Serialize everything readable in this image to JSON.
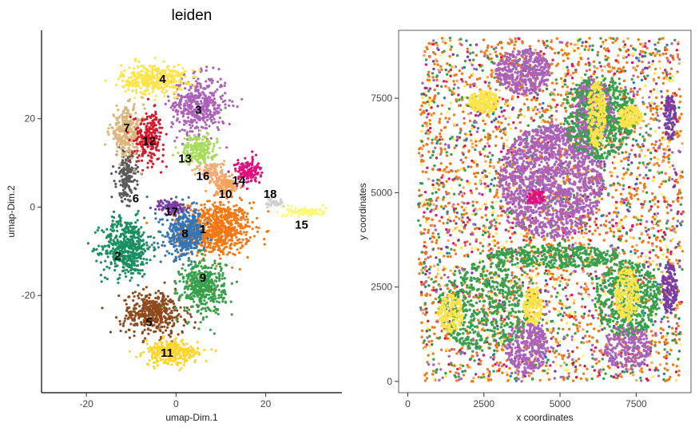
{
  "palette": {
    "1": "#f57712",
    "2": "#1b8f5f",
    "3": "#ab62b8",
    "4": "#fde44a",
    "5": "#8e4a1c",
    "6": "#5a5a5a",
    "7": "#dcb57a",
    "8": "#3575b5",
    "9": "#37a04a",
    "10": "#f8a25a",
    "11": "#fdd52b",
    "12": "#d6182a",
    "13": "#a7dc5a",
    "14": "#e0117e",
    "15": "#fef87a",
    "16": "#f7a978",
    "17": "#7a3ca0",
    "18": "#d0d0d0",
    "19": "#f4c23a"
  },
  "chart_data": [
    {
      "type": "scatter",
      "title": "leiden",
      "xlabel": "umap-Dim.1",
      "ylabel": "umap-Dim.2",
      "xlim": [
        -30,
        37
      ],
      "ylim": [
        -42,
        40
      ],
      "xticks": [
        -20,
        0,
        20
      ],
      "yticks": [
        -20,
        0,
        20
      ],
      "grid": false,
      "legend": "none",
      "clusters": [
        {
          "id": "1",
          "cx": 9,
          "cy": -5,
          "sx": 7.0,
          "sy": 5.5,
          "n": 700
        },
        {
          "id": "2",
          "cx": -11,
          "cy": -9,
          "sx": 5.0,
          "sy": 6.0,
          "n": 500
        },
        {
          "id": "3",
          "cx": 5,
          "cy": 23,
          "sx": 5.5,
          "sy": 6.0,
          "n": 450
        },
        {
          "id": "4",
          "cx": -5,
          "cy": 29,
          "sx": 6.5,
          "sy": 3.0,
          "n": 380
        },
        {
          "id": "5",
          "cx": -5,
          "cy": -24,
          "sx": 6.5,
          "sy": 4.5,
          "n": 420
        },
        {
          "id": "6",
          "cx": -11,
          "cy": 7,
          "sx": 2.0,
          "sy": 5.0,
          "n": 180
        },
        {
          "id": "7",
          "cx": -11,
          "cy": 17,
          "sx": 3.5,
          "sy": 5.0,
          "n": 280
        },
        {
          "id": "8",
          "cx": 2,
          "cy": -6,
          "sx": 4.0,
          "sy": 5.0,
          "n": 400
        },
        {
          "id": "9",
          "cx": 6,
          "cy": -18,
          "sx": 4.5,
          "sy": 5.5,
          "n": 420
        },
        {
          "id": "10",
          "cx": 11,
          "cy": 5,
          "sx": 3.0,
          "sy": 2.0,
          "n": 120
        },
        {
          "id": "11",
          "cx": -1,
          "cy": -33,
          "sx": 5.5,
          "sy": 2.5,
          "n": 300
        },
        {
          "id": "12",
          "cx": -6,
          "cy": 16,
          "sx": 3.0,
          "sy": 5.0,
          "n": 220
        },
        {
          "id": "13",
          "cx": 5,
          "cy": 13,
          "sx": 3.5,
          "sy": 3.0,
          "n": 220
        },
        {
          "id": "14",
          "cx": 16,
          "cy": 8,
          "sx": 2.5,
          "sy": 2.5,
          "n": 150
        },
        {
          "id": "15",
          "cx": 29,
          "cy": -1,
          "sx": 4.0,
          "sy": 1.0,
          "n": 100
        },
        {
          "id": "16",
          "cx": 8,
          "cy": 8,
          "sx": 2.5,
          "sy": 2.0,
          "n": 100
        },
        {
          "id": "17",
          "cx": -1,
          "cy": 0,
          "sx": 3.0,
          "sy": 1.5,
          "n": 90
        },
        {
          "id": "18",
          "cx": 22,
          "cy": 1,
          "sx": 2.0,
          "sy": 1.0,
          "n": 40
        }
      ],
      "labels": [
        {
          "text": "4",
          "x": -3,
          "y": 29
        },
        {
          "text": "3",
          "x": 5,
          "y": 22
        },
        {
          "text": "7",
          "x": -11,
          "y": 18
        },
        {
          "text": "12",
          "x": -6,
          "y": 15
        },
        {
          "text": "13",
          "x": 2,
          "y": 11
        },
        {
          "text": "16",
          "x": 6,
          "y": 7
        },
        {
          "text": "14",
          "x": 14,
          "y": 6
        },
        {
          "text": "10",
          "x": 11,
          "y": 3
        },
        {
          "text": "18",
          "x": 21,
          "y": 3
        },
        {
          "text": "6",
          "x": -9,
          "y": 2
        },
        {
          "text": "17",
          "x": -1,
          "y": -1
        },
        {
          "text": "15",
          "x": 28,
          "y": -4
        },
        {
          "text": "8",
          "x": 2,
          "y": -6
        },
        {
          "text": "1",
          "x": 6,
          "y": -5
        },
        {
          "text": "2",
          "x": -13,
          "y": -11
        },
        {
          "text": "9",
          "x": 6,
          "y": -16
        },
        {
          "text": "5",
          "x": -6,
          "y": -26
        },
        {
          "text": "11",
          "x": -2,
          "y": -33
        }
      ]
    },
    {
      "type": "scatter",
      "title": "",
      "xlabel": "x coordinates",
      "ylabel": "y coordinates",
      "xlim": [
        -300,
        9300
      ],
      "ylim": [
        -300,
        9300
      ],
      "xticks": [
        0,
        2500,
        5000,
        7500
      ],
      "yticks": [
        0,
        2500,
        5000,
        7500
      ],
      "grid": false,
      "legend": "none",
      "tissue_region": {
        "xmin": 300,
        "xmax": 8900,
        "ymin": 0,
        "ymax": 9100
      },
      "background_mix": [
        {
          "id": "1",
          "w": 38
        },
        {
          "id": "9",
          "w": 14
        },
        {
          "id": "3",
          "w": 10
        },
        {
          "id": "4",
          "w": 6
        },
        {
          "id": "14",
          "w": 5
        },
        {
          "id": "8",
          "w": 4
        },
        {
          "id": "10",
          "w": 8
        },
        {
          "id": "17",
          "w": 5
        },
        {
          "id": "15",
          "w": 4
        },
        {
          "id": "2",
          "w": 3
        },
        {
          "id": "12",
          "w": 3
        }
      ],
      "structures": [
        {
          "id": "3",
          "cx": 4700,
          "cy": 5300,
          "rx": 1700,
          "ry": 1500,
          "n": 1400
        },
        {
          "id": "3",
          "cx": 3800,
          "cy": 8200,
          "rx": 900,
          "ry": 600,
          "n": 400
        },
        {
          "id": "3",
          "cx": 6100,
          "cy": 7200,
          "rx": 700,
          "ry": 800,
          "n": 350
        },
        {
          "id": "3",
          "cx": 3900,
          "cy": 900,
          "rx": 700,
          "ry": 700,
          "n": 300
        },
        {
          "id": "3",
          "cx": 7200,
          "cy": 900,
          "rx": 800,
          "ry": 600,
          "n": 250
        },
        {
          "id": "9",
          "cx": 6300,
          "cy": 7000,
          "rx": 1200,
          "ry": 1100,
          "n": 500
        },
        {
          "id": "9",
          "cx": 2500,
          "cy": 2000,
          "rx": 1500,
          "ry": 1200,
          "n": 500
        },
        {
          "id": "9",
          "cx": 7200,
          "cy": 2200,
          "rx": 1100,
          "ry": 1000,
          "n": 450
        },
        {
          "id": "9",
          "cx": 4800,
          "cy": 3300,
          "rx": 2200,
          "ry": 300,
          "n": 350
        },
        {
          "id": "4",
          "cx": 6200,
          "cy": 7100,
          "rx": 300,
          "ry": 900,
          "n": 220
        },
        {
          "id": "4",
          "cx": 2500,
          "cy": 7400,
          "rx": 500,
          "ry": 300,
          "n": 180
        },
        {
          "id": "4",
          "cx": 1400,
          "cy": 1800,
          "rx": 400,
          "ry": 500,
          "n": 180
        },
        {
          "id": "4",
          "cx": 7200,
          "cy": 2300,
          "rx": 400,
          "ry": 700,
          "n": 200
        },
        {
          "id": "4",
          "cx": 4100,
          "cy": 2000,
          "rx": 300,
          "ry": 500,
          "n": 140
        },
        {
          "id": "4",
          "cx": 7300,
          "cy": 7000,
          "rx": 400,
          "ry": 300,
          "n": 140
        },
        {
          "id": "14",
          "cx": 4200,
          "cy": 4900,
          "rx": 300,
          "ry": 200,
          "n": 60
        },
        {
          "id": "17",
          "cx": 8600,
          "cy": 2500,
          "rx": 250,
          "ry": 700,
          "n": 140
        },
        {
          "id": "17",
          "cx": 8600,
          "cy": 7000,
          "rx": 200,
          "ry": 600,
          "n": 100
        }
      ]
    }
  ]
}
